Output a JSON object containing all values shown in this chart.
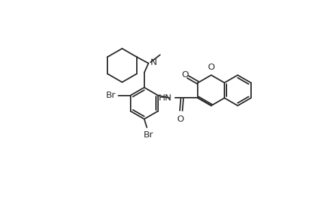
{
  "bg_color": "#ffffff",
  "line_color": "#2a2a2a",
  "line_width": 1.4,
  "font_size": 9.5,
  "figsize": [
    4.6,
    3.0
  ],
  "dpi": 100,
  "xlim": [
    0,
    460
  ],
  "ylim": [
    0,
    300
  ]
}
